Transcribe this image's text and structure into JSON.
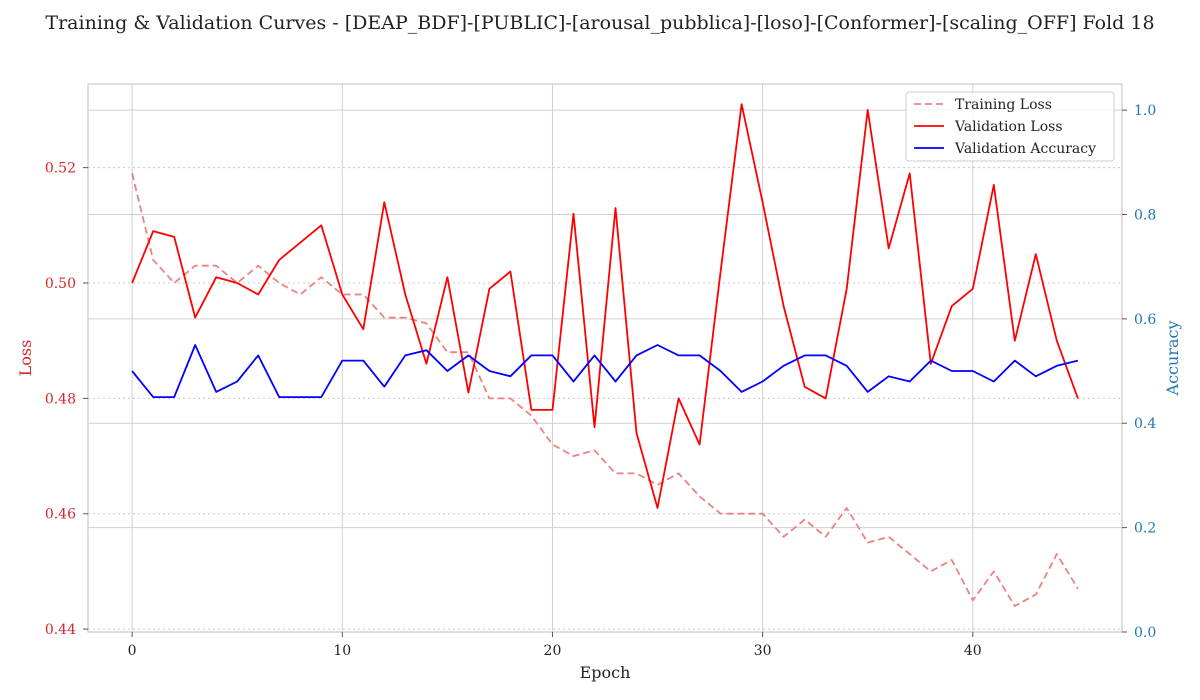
{
  "chart_data": {
    "type": "line",
    "title": "Training & Validation Curves - [DEAP_BDF]-[PUBLIC]-[arousal_pubblica]-[loso]-[Conformer]-[scaling_OFF] Fold 18",
    "xlabel": "Epoch",
    "ylabel_left": "Loss",
    "ylabel_right": "Accuracy",
    "xlim": [
      -2.1,
      47.1
    ],
    "ylim_left": [
      0.4395,
      0.5345
    ],
    "ylim_right": [
      0.0,
      1.05
    ],
    "x_ticks": [
      0,
      10,
      20,
      30,
      40
    ],
    "y_left_ticks": [
      0.44,
      0.46,
      0.48,
      0.5,
      0.52
    ],
    "y_left_tick_labels": [
      "0.44",
      "0.46",
      "0.48",
      "0.50",
      "0.52"
    ],
    "y_right_ticks": [
      0.0,
      0.2,
      0.4,
      0.6,
      0.8,
      1.0
    ],
    "y_right_tick_labels": [
      "0.0",
      "0.2",
      "0.4",
      "0.6",
      "0.8",
      "1.0"
    ],
    "grid": true,
    "legend_position": "top-right",
    "colors": {
      "training_loss": "#f08080",
      "validation_loss": "#ff0000",
      "validation_accuracy": "#0000ff",
      "left_axis": "#d62728",
      "right_axis": "#1f77b4"
    },
    "x": [
      0,
      1,
      2,
      3,
      4,
      5,
      6,
      7,
      8,
      9,
      10,
      11,
      12,
      13,
      14,
      15,
      16,
      17,
      18,
      19,
      20,
      21,
      22,
      23,
      24,
      25,
      26,
      27,
      28,
      29,
      30,
      31,
      32,
      33,
      34,
      35,
      36,
      37,
      38,
      39,
      40,
      41,
      42,
      43,
      44,
      45
    ],
    "series": [
      {
        "name": "Training Loss",
        "axis": "left",
        "style": "dashed",
        "values": [
          0.519,
          0.504,
          0.5,
          0.503,
          0.503,
          0.5,
          0.503,
          0.5,
          0.498,
          0.501,
          0.498,
          0.498,
          0.494,
          0.494,
          0.493,
          0.488,
          0.488,
          0.48,
          0.48,
          0.477,
          0.472,
          0.47,
          0.471,
          0.467,
          0.467,
          0.465,
          0.467,
          0.463,
          0.46,
          0.46,
          0.46,
          0.456,
          0.459,
          0.456,
          0.461,
          0.455,
          0.456,
          0.453,
          0.45,
          0.452,
          0.445,
          0.45,
          0.444,
          0.446,
          0.453,
          0.447
        ]
      },
      {
        "name": "Validation Loss",
        "axis": "left",
        "style": "solid",
        "values": [
          0.5,
          0.509,
          0.508,
          0.494,
          0.501,
          0.5,
          0.498,
          0.504,
          0.507,
          0.51,
          0.498,
          0.492,
          0.514,
          0.498,
          0.486,
          0.501,
          0.481,
          0.499,
          0.502,
          0.478,
          0.478,
          0.512,
          0.475,
          0.513,
          0.474,
          0.461,
          0.48,
          0.472,
          0.502,
          0.531,
          0.514,
          0.496,
          0.482,
          0.48,
          0.499,
          0.53,
          0.506,
          0.519,
          0.486,
          0.496,
          0.499,
          0.517,
          0.49,
          0.505,
          0.49,
          0.48
        ]
      },
      {
        "name": "Validation Accuracy",
        "axis": "right",
        "style": "solid",
        "values": [
          0.5,
          0.45,
          0.45,
          0.55,
          0.46,
          0.48,
          0.53,
          0.45,
          0.45,
          0.45,
          0.52,
          0.52,
          0.47,
          0.53,
          0.54,
          0.5,
          0.53,
          0.5,
          0.49,
          0.53,
          0.53,
          0.48,
          0.53,
          0.48,
          0.53,
          0.55,
          0.53,
          0.53,
          0.5,
          0.46,
          0.48,
          0.51,
          0.53,
          0.53,
          0.51,
          0.46,
          0.49,
          0.48,
          0.52,
          0.5,
          0.5,
          0.48,
          0.52,
          0.49,
          0.51,
          0.52
        ]
      }
    ]
  }
}
